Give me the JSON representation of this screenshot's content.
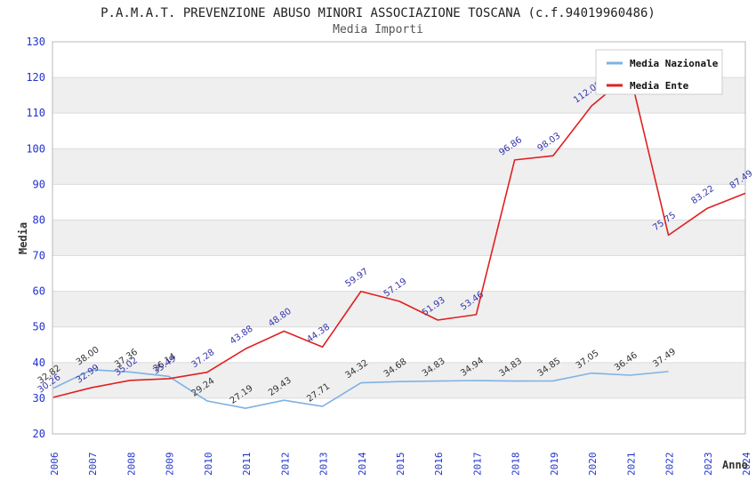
{
  "title": "P.A.M.A.T. PREVENZIONE ABUSO MINORI ASSOCIAZIONE TOSCANA (c.f.94019960486)",
  "subtitle": "Media Importi",
  "legend": {
    "position": "top-right",
    "items": [
      {
        "label": "Media Nazionale",
        "color": "#7EB2E4"
      },
      {
        "label": "Media Ente",
        "color": "#E02020"
      }
    ]
  },
  "chart_data": {
    "type": "line",
    "title": "P.A.M.A.T. PREVENZIONE ABUSO MINORI ASSOCIAZIONE TOSCANA (c.f.94019960486)",
    "subtitle": "Media Importi",
    "xlabel": "Anno",
    "ylabel": "Media",
    "ylim": [
      20,
      130
    ],
    "y_ticks": [
      20,
      30,
      40,
      50,
      60,
      70,
      80,
      90,
      100,
      110,
      120,
      130
    ],
    "grid": true,
    "alternating_bands": true,
    "legend_position": "top-right",
    "categories": [
      2006,
      2007,
      2008,
      2009,
      2010,
      2011,
      2012,
      2013,
      2014,
      2015,
      2016,
      2017,
      2018,
      2019,
      2020,
      2021,
      2022,
      2023,
      2024
    ],
    "series": [
      {
        "name": "Media Nazionale",
        "color": "#7EB2E4",
        "label_color": "#333333",
        "values": [
          32.82,
          38.0,
          37.36,
          36.14,
          29.24,
          27.19,
          29.43,
          27.71,
          34.32,
          34.68,
          34.83,
          34.94,
          34.83,
          34.85,
          37.05,
          36.46,
          37.49,
          null,
          null
        ],
        "hidden_label_indices": []
      },
      {
        "name": "Media Ente",
        "color": "#E02020",
        "label_color": "#3333AA",
        "values": [
          30.26,
          32.99,
          35.02,
          35.49,
          37.28,
          43.88,
          48.8,
          44.38,
          59.97,
          57.19,
          51.93,
          53.46,
          96.86,
          98.03,
          112.0,
          121.0,
          75.75,
          83.22,
          87.49
        ],
        "hidden_label_indices": [
          15
        ]
      }
    ]
  },
  "colors": {
    "tick_label": "#2233CC",
    "band": "#EFEFEF",
    "grid": "#DCDCDC",
    "border": "#B8B8B8",
    "axis_title": "#333333",
    "legend_border": "#CCCCCC",
    "legend_bg": "#FFFFFF",
    "legend_text": "#111111"
  }
}
